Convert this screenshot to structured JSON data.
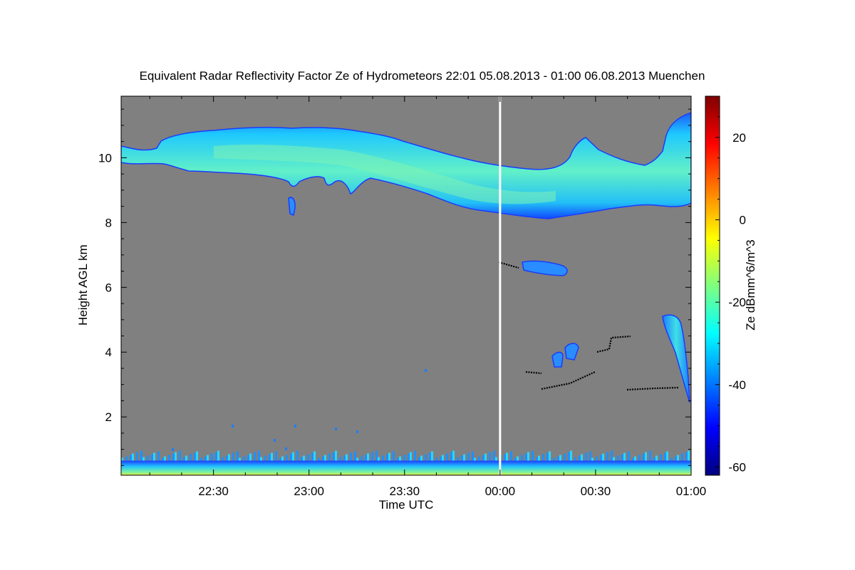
{
  "chart_data": {
    "type": "heatmap",
    "title": "Equivalent Radar Reflectivity Factor Ze of Hydrometeors   22:01 05.08.2013 - 01:00 06.08.2013 Muenchen",
    "xlabel": "Time UTC",
    "ylabel": "Height AGL km",
    "colorbar_label": "Ze dBmm^6/m^3",
    "x_range_minutes_after_2200": [
      1,
      180
    ],
    "y_range_km": [
      0.2,
      11.9
    ],
    "x_ticks": [
      {
        "label": "22:30",
        "minute": 30
      },
      {
        "label": "23:00",
        "minute": 60
      },
      {
        "label": "23:30",
        "minute": 90
      },
      {
        "label": "00:00",
        "minute": 120
      },
      {
        "label": "00:30",
        "minute": 150
      },
      {
        "label": "01:00",
        "minute": 180
      }
    ],
    "y_ticks": [
      {
        "label": "2",
        "value": 2
      },
      {
        "label": "4",
        "value": 4
      },
      {
        "label": "6",
        "value": 6
      },
      {
        "label": "8",
        "value": 8
      },
      {
        "label": "10",
        "value": 10
      }
    ],
    "colorbar_range": [
      -62,
      30
    ],
    "colorbar_ticks": [
      {
        "label": "20",
        "value": 20
      },
      {
        "label": "0",
        "value": 0
      },
      {
        "label": "-20",
        "value": -20
      },
      {
        "label": "-40",
        "value": -40
      },
      {
        "label": "-60",
        "value": -60
      }
    ],
    "background_color": "#808080",
    "marker_line_time_minute": 120,
    "features": [
      {
        "name": "upper cirrus layer",
        "time_start": 1,
        "time_end": 180,
        "height_base_km": [
          9.7,
          9.9,
          9.8,
          9.5,
          9.2,
          8.6,
          8.5,
          8.5,
          8.7,
          8.6
        ],
        "height_top_km": [
          10.4,
          10.7,
          11.0,
          10.9,
          10.2,
          9.8,
          9.6,
          10.0,
          10.6,
          11.4
        ],
        "ze_dbz": -25
      },
      {
        "name": "mid-level cloud",
        "time_start": 121,
        "time_end": 143,
        "height_km": 6.7,
        "ze_dbz": -35
      },
      {
        "name": "fall streak",
        "time_start": 173,
        "time_end": 180,
        "height_top_km": 5.1,
        "height_base_km": 2.4,
        "ze_dbz": -35
      },
      {
        "name": "surface clutter",
        "time_start": 1,
        "time_end": 180,
        "height_top_km": 0.65,
        "ze_dbz": -30
      }
    ]
  },
  "cloud_paths": [
    "M170,205 C185,208 200,214 220,208 L226,198 C240,190 265,185 300,183 C330,180 370,177 410,180 C440,178 465,179 490,182 C520,187 545,190 565,198 C590,205 620,215 650,222 C680,230 710,234 740,237 C770,240 790,235 800,220 C805,205 815,196 822,193 L840,210 C860,220 880,228 905,232 C920,226 925,218 930,212 L935,190 C940,175 950,165 970,158 L970,285 C955,292 940,290 920,288 C900,286 880,290 855,293 C830,298 800,302 770,307 C740,305 710,300 680,296 C650,293 625,282 600,272 C570,262 545,255 520,250 C505,255 498,270 492,272 C488,260 480,250 470,255 C462,262 458,262 455,250 C445,245 430,250 420,255 C415,262 410,265 405,255 C395,250 370,245 330,243 C300,242 285,240 265,240 C250,236 240,232 230,230 C210,228 190,232 170,228 Z",
    "M733,368 C750,364 775,368 790,373 C800,378 796,385 790,387 C770,386 750,383 735,379 Z",
    "M930,444 C940,440 950,442 955,452 C960,470 963,500 966,530 L968,565 C962,545 955,520 948,495 C940,475 932,460 930,444 Z",
    "M775,500 C782,492 790,493 790,500 L788,515 L778,515 Z",
    "M793,488 C800,480 810,480 812,488 L806,505 L795,503 Z",
    "M405,278 C410,275 415,280 414,292 L412,302 L407,300 Z"
  ],
  "black_tracks": [
    [
      [
        700,
        368
      ],
      [
        728,
        376
      ]
    ],
    [
      [
        738,
        522
      ],
      [
        760,
        524
      ]
    ],
    [
      [
        760,
        546
      ],
      [
        800,
        538
      ],
      [
        835,
        522
      ]
    ],
    [
      [
        838,
        494
      ],
      [
        855,
        490
      ],
      [
        858,
        474
      ],
      [
        885,
        472
      ]
    ],
    [
      [
        880,
        547
      ],
      [
        920,
        545
      ],
      [
        952,
        544
      ]
    ]
  ]
}
